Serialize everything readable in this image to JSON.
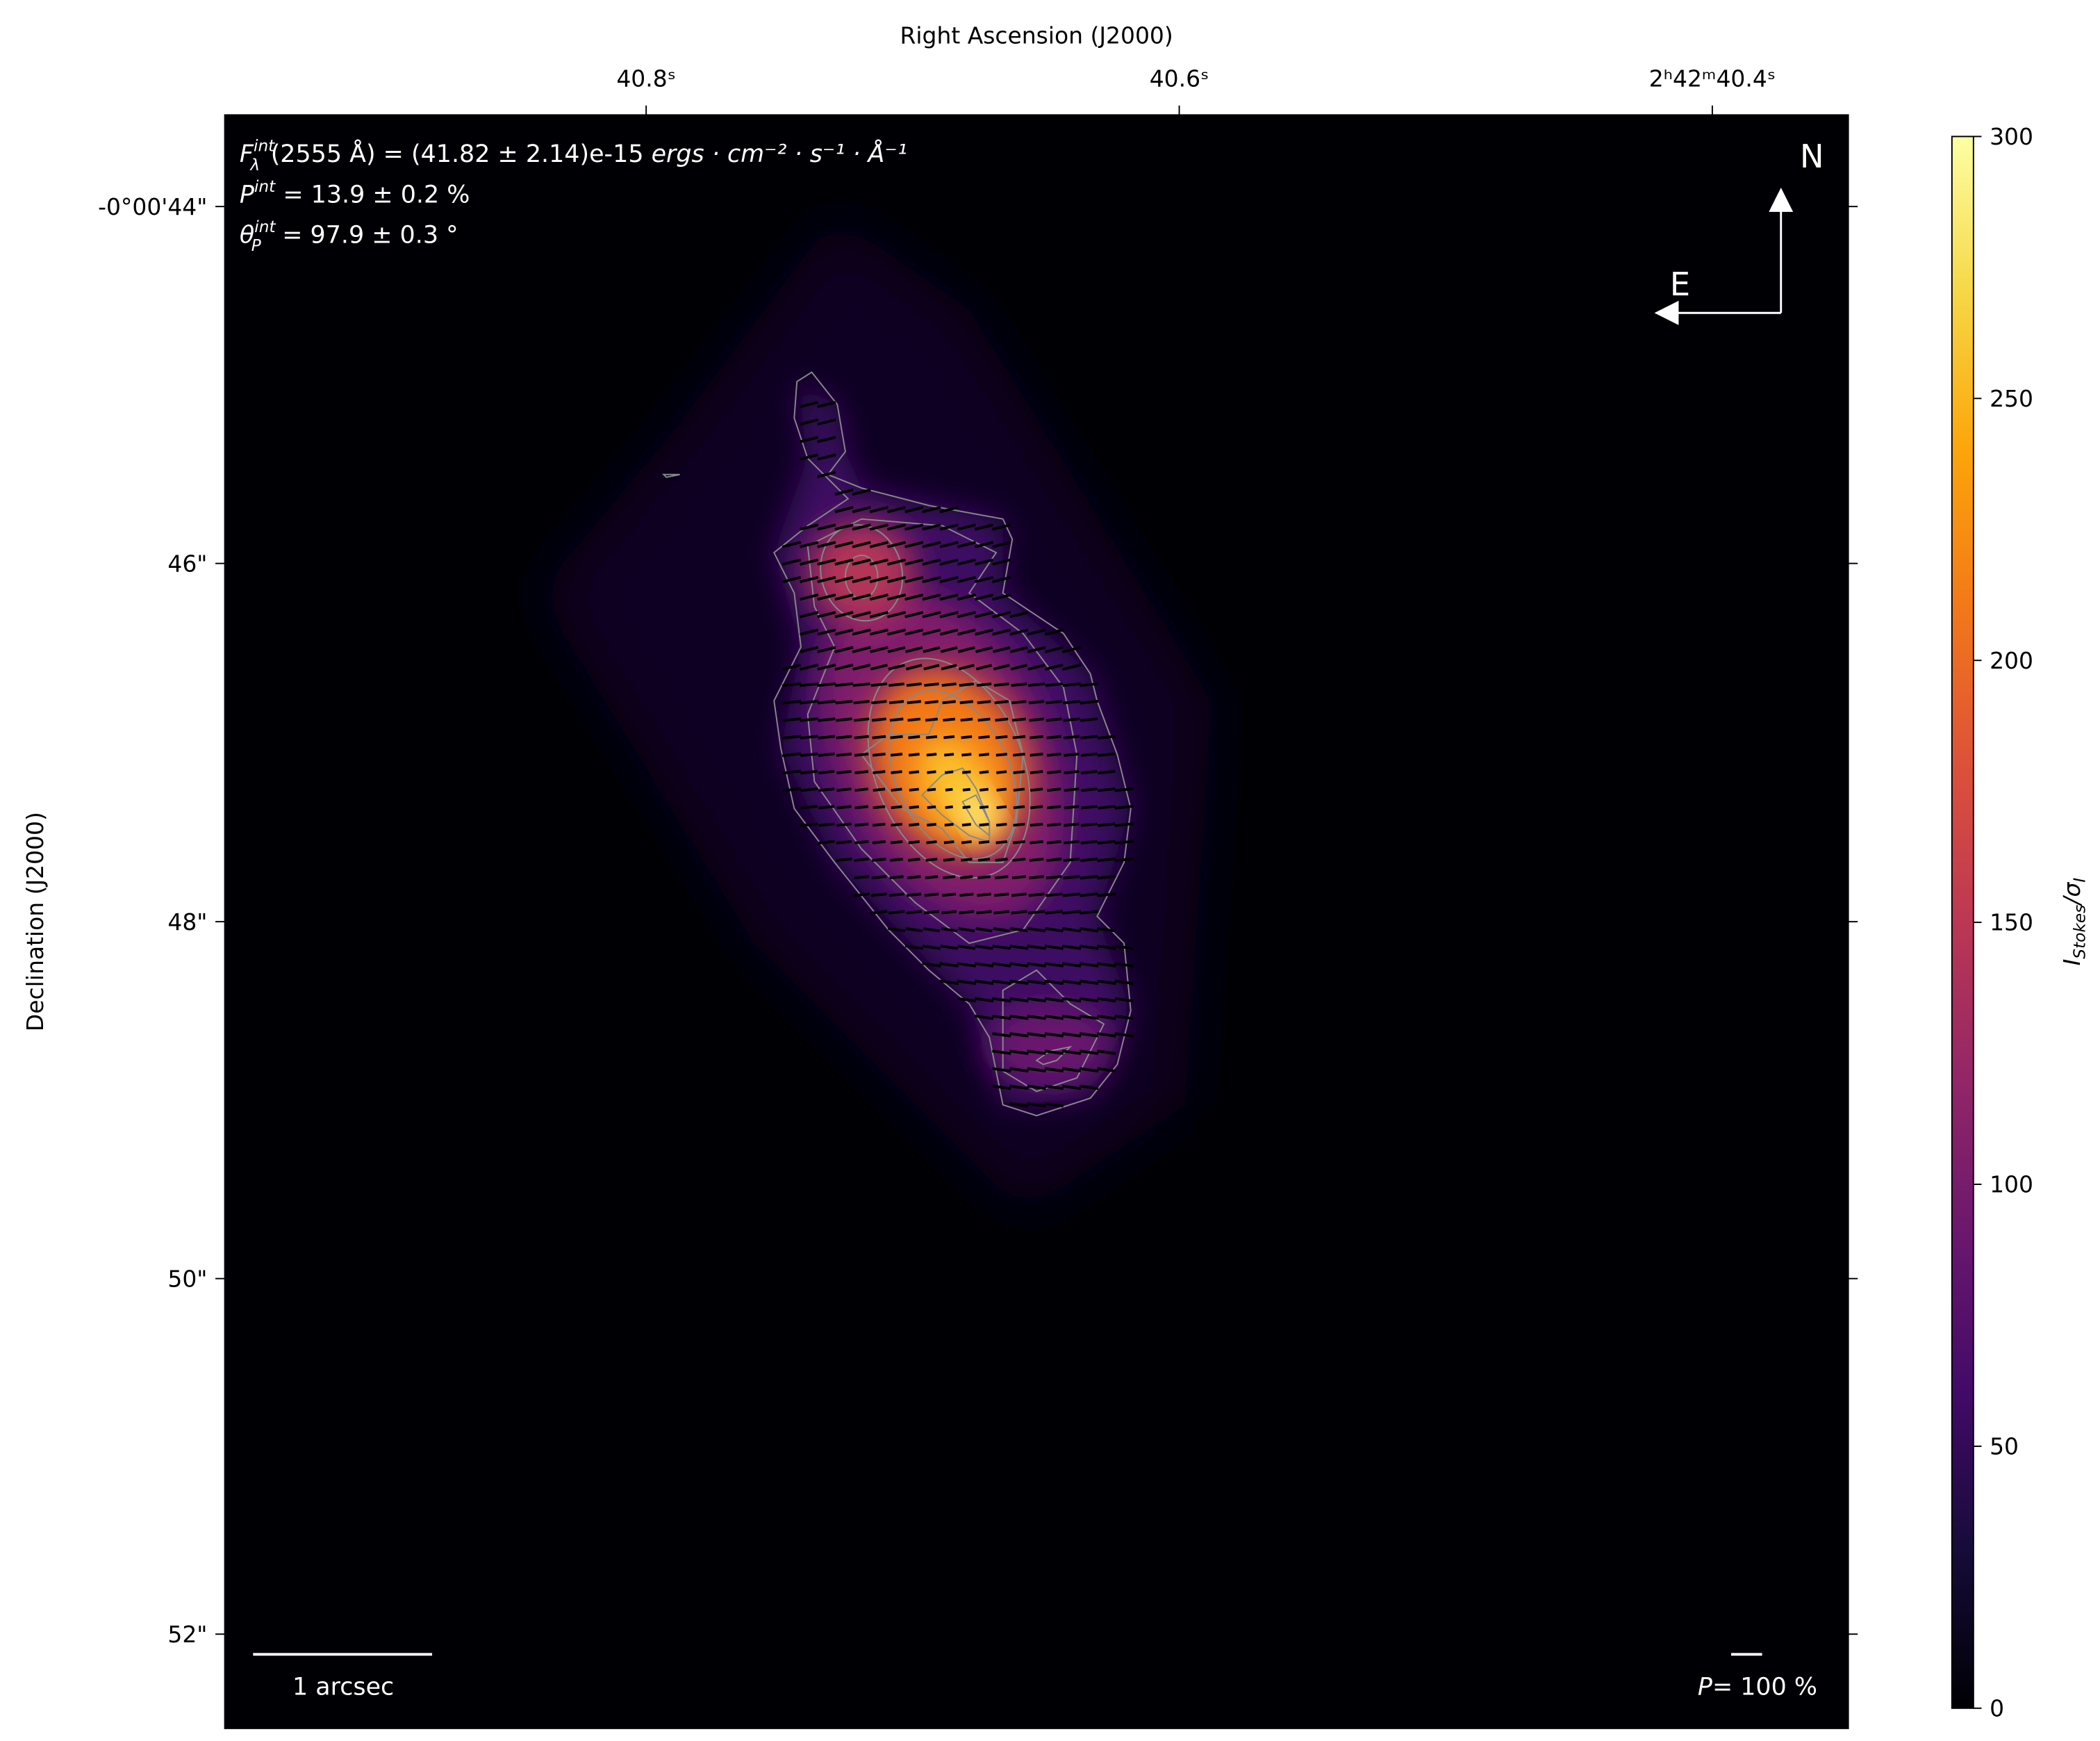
{
  "chart_data": {
    "type": "heatmap",
    "xlabel": "Right Ascension (J2000)",
    "ylabel": "Declination (J2000)",
    "x_ticks": [
      "40.8ˢ",
      "40.6ˢ",
      "2ʰ42ᵐ40.4ˢ"
    ],
    "y_ticks": [
      "-0°00'44\"",
      "46\"",
      "48\"",
      "50\"",
      "52\""
    ],
    "colorbar": {
      "label_main": "I",
      "label_sub": "Stokes",
      "label_sep": "/σ",
      "label_sub2": "I",
      "range": [
        0,
        300
      ],
      "ticks": [
        "0",
        "50",
        "100",
        "150",
        "200",
        "250",
        "300"
      ],
      "colormap": "inferno"
    },
    "overlays": {
      "contours": true,
      "contour_color": "#888888",
      "polarization_vectors": true,
      "vector_color": "#000000"
    },
    "annotations": {
      "flux": {
        "sym": "F",
        "sup": "int",
        "sub": "λ",
        "rest": "(2555 Å) = (41.82 ± 2.14)e-15 ",
        "units": "ergs · cm⁻² · s⁻¹ · Å⁻¹"
      },
      "pol": {
        "sym": "P",
        "sup": "int",
        "rest": " = 13.9 ± 0.2 %"
      },
      "angle": {
        "sym": "θ",
        "sup": "int",
        "sub": "P",
        "rest": " = 97.9 ± 0.3 °"
      }
    },
    "compass": {
      "north": "N",
      "east": "E"
    },
    "scale_bar": "1 arcsec",
    "pol_scale": {
      "sym": "P",
      "rest": "= 100 %"
    }
  }
}
